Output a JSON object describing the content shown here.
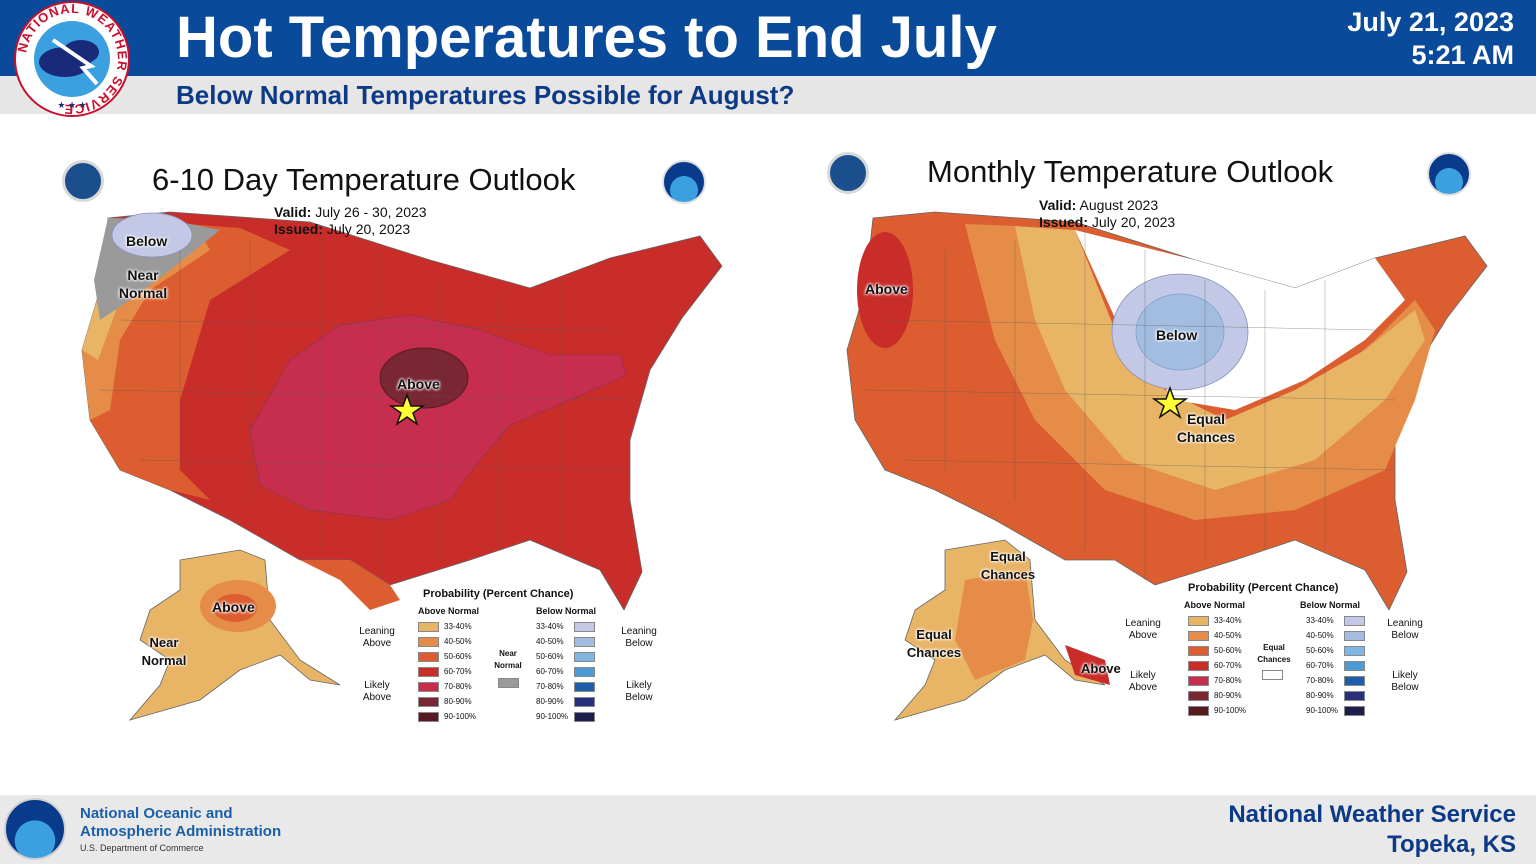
{
  "header": {
    "title": "Hot Temperatures to End July",
    "subtitle": "Below Normal Temperatures Possible for August?",
    "date": "July 21, 2023",
    "time": "5:21 AM",
    "logo_text": "NATIONAL WEATHER SERVICE"
  },
  "footer": {
    "org_line1": "National Oceanic and",
    "org_line2": "Atmospheric Administration",
    "dept": "U.S. Department of Commerce",
    "office_line1": "National Weather Service",
    "office_line2": "Topeka, KS"
  },
  "colors": {
    "header_bg": "#0a4a9a",
    "above_33_40": "#e8b466",
    "above_40_50": "#e58d48",
    "above_50_60": "#dc5e30",
    "above_60_70": "#c92d2a",
    "above_70_80": "#c72e4e",
    "above_80_90": "#7a2633",
    "above_90_100": "#561a20",
    "below_33_40": "#c3c8e6",
    "below_40_50": "#a3bde0",
    "below_50_60": "#7fb6e2",
    "below_60_70": "#4a9bd6",
    "below_70_80": "#1f5fa8",
    "below_80_90": "#28307e",
    "below_90_100": "#1c1d4c",
    "near_normal": "#9a9a9a"
  },
  "maps": [
    {
      "title": "6-10 Day Temperature Outlook",
      "valid_label": "Valid:",
      "valid": "July 26 - 30, 2023",
      "issued_label": "Issued:",
      "issued": "July 20, 2023",
      "region_labels": [
        "Below",
        "Near Normal",
        "Above",
        "Above",
        "Near Normal"
      ],
      "legend": {
        "title": "Probability (Percent Chance)",
        "above_head": "Above Normal",
        "below_head": "Below Normal",
        "above_bins": [
          "33-40%",
          "40-50%",
          "50-60%",
          "60-70%",
          "70-80%",
          "80-90%",
          "90-100%"
        ],
        "below_bins": [
          "33-40%",
          "40-50%",
          "50-60%",
          "60-70%",
          "70-80%",
          "80-90%",
          "90-100%"
        ],
        "leaning_above": "Leaning Above",
        "likely_above": "Likely Above",
        "leaning_below": "Leaning Below",
        "likely_below": "Likely Below",
        "middle": "Near Normal"
      }
    },
    {
      "title": "Monthly Temperature Outlook",
      "valid_label": "Valid:",
      "valid": "August 2023",
      "issued_label": "Issued:",
      "issued": "July 20, 2023",
      "region_labels": [
        "Above",
        "Below",
        "Equal Chances",
        "Equal Chances",
        "Equal Chances",
        "Above"
      ],
      "legend": {
        "title": "Probability (Percent Chance)",
        "above_head": "Above Normal",
        "below_head": "Below Normal",
        "above_bins": [
          "33-40%",
          "40-50%",
          "50-60%",
          "60-70%",
          "70-80%",
          "80-90%",
          "90-100%"
        ],
        "below_bins": [
          "33-40%",
          "40-50%",
          "50-60%",
          "60-70%",
          "70-80%",
          "80-90%",
          "90-100%"
        ],
        "leaning_above": "Leaning Above",
        "likely_above": "Likely Above",
        "leaning_below": "Leaning Below",
        "likely_below": "Likely Below",
        "middle": "Equal Chances"
      }
    }
  ]
}
